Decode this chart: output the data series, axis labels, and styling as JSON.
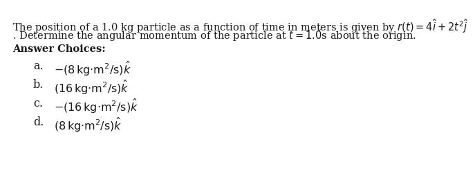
{
  "bg_color": "#ffffff",
  "text_color": "#1a1a1a",
  "font_size_body": 10.5,
  "font_size_header": 10.5,
  "font_size_choices": 11.5,
  "line1_plain": "The position of a 1.0 kg particle as a function of time in meters is given by ",
  "line1_math": "$r(t)= 4\\hat{i}+2t^2\\hat{j}$",
  "line2": ". Determine the angular momentum of the particle at $t =1.0$s about the origin.",
  "header": "Answer Choices:",
  "choice_labels": [
    "a.",
    "b.",
    "c.",
    "d."
  ],
  "choice_exprs": [
    "$-(8\\,\\mathrm{kg{\\cdot}m^2/s})\\hat{k}$",
    "$(16\\,\\mathrm{kg{\\cdot}m^2/s})\\hat{k}$",
    "$-(16\\,\\mathrm{kg{\\cdot}m^2/s})\\hat{k}$",
    "$(8\\,\\mathrm{kg{\\cdot}m^2/s})\\hat{k}$"
  ]
}
